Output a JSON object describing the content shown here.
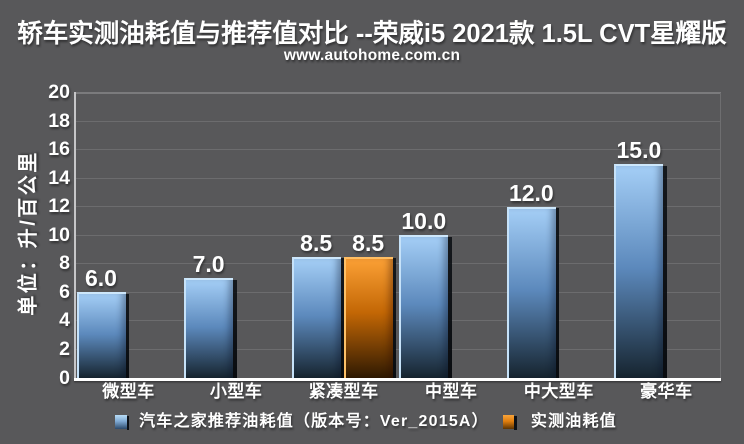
{
  "page": {
    "background_color": "#58585a"
  },
  "header": {
    "title": "轿车实测油耗值与推荐值对比 --荣威i5 2021款 1.5L CVT星耀版",
    "subtitle": "www.autohome.com.cn"
  },
  "chart_data": {
    "type": "bar",
    "title": "轿车实测油耗值与推荐值对比 --荣威i5 2021款 1.5L CVT星耀版",
    "subtitle": "www.autohome.com.cn",
    "xlabel": "",
    "ylabel": "单位：升/百公里",
    "ylim": [
      0,
      20
    ],
    "ytick_step": 2,
    "grid": true,
    "legend_position": "bottom",
    "categories": [
      "微型车",
      "小型车",
      "紧凑型车",
      "中型车",
      "中大型车",
      "豪华车"
    ],
    "series": [
      {
        "name": "汽车之家推荐油耗值（版本号：Ver_2015A）",
        "color": "#7fb0dd",
        "values": [
          6.0,
          7.0,
          8.5,
          10.0,
          12.0,
          15.0
        ],
        "data_labels": [
          "6.0",
          "7.0",
          "8.5",
          "10.0",
          "12.0",
          "15.0"
        ]
      },
      {
        "name": "实测油耗值",
        "color": "#ec860f",
        "values": [
          null,
          null,
          8.5,
          null,
          null,
          null
        ],
        "data_labels": [
          null,
          null,
          "8.5",
          null,
          null,
          null
        ]
      }
    ],
    "yticks": [
      0,
      2,
      4,
      6,
      8,
      10,
      12,
      14,
      16,
      18,
      20
    ]
  },
  "legend": {
    "items": [
      {
        "label": "汽车之家推荐油耗值（版本号：Ver_2015A）",
        "color": "#7fb0dd"
      },
      {
        "label": "实测油耗值",
        "color": "#ec860f"
      }
    ]
  }
}
